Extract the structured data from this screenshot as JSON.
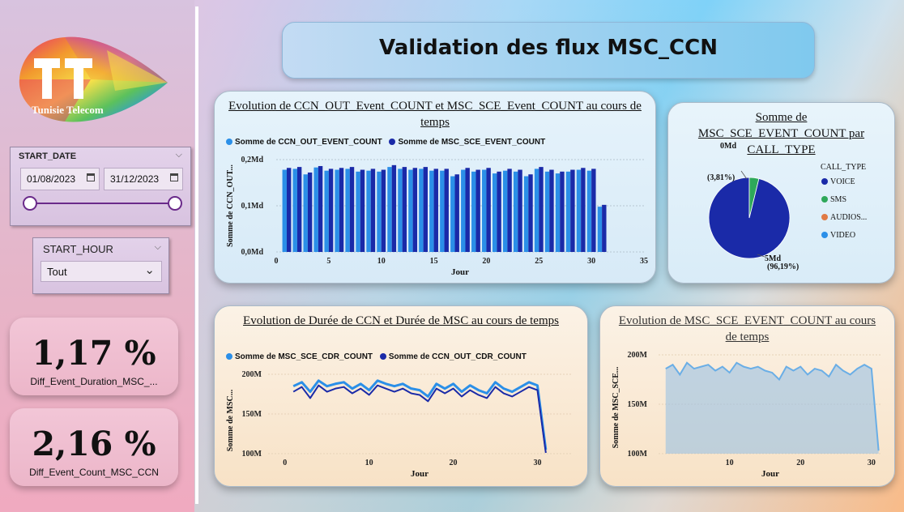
{
  "brand": {
    "logo_text": "Tunisie Telecom"
  },
  "dashboard_title": "Validation des flux MSC_CCN",
  "filters": {
    "start_date": {
      "label": "START_DATE",
      "from": "01/08/2023",
      "to": "31/12/2023"
    },
    "start_hour": {
      "label": "START_HOUR",
      "value": "Tout"
    }
  },
  "kpis": [
    {
      "value": "1,17 %",
      "label": "Diff_Event_Duration_MSC_..."
    },
    {
      "value": "2,16 %",
      "label": "Diff_Event_Count_MSC_CCN"
    }
  ],
  "colors": {
    "light_series": "#2b8fe8",
    "dark_series": "#1a2aa8",
    "area": "#8fbde6",
    "voice": "#1a2aa8",
    "sms": "#2ea85a",
    "audios": "#e07a45",
    "video": "#2b8fe8"
  },
  "chart_data": [
    {
      "type": "bar",
      "title": "Evolution de CCN_OUT_Event_COUNT et MSC_SCE_Event_COUNT au cours de temps",
      "xlabel": "Jour",
      "ylabel": "Somme de CCN_OUT...",
      "x_ticks": [
        "0",
        "5",
        "10",
        "15",
        "20",
        "25",
        "30",
        "35"
      ],
      "y_ticks": [
        "0,0Md",
        "0,1Md",
        "0,2Md"
      ],
      "xlim": [
        0,
        35
      ],
      "ylim": [
        0,
        0.2
      ],
      "x": [
        1,
        2,
        3,
        4,
        5,
        6,
        7,
        8,
        9,
        10,
        11,
        12,
        13,
        14,
        15,
        16,
        17,
        18,
        19,
        20,
        21,
        22,
        23,
        24,
        25,
        26,
        27,
        28,
        29,
        30,
        31
      ],
      "series": [
        {
          "name": "Somme de CCN_OUT_EVENT_COUNT",
          "values": [
            0.178,
            0.18,
            0.168,
            0.183,
            0.176,
            0.178,
            0.18,
            0.174,
            0.176,
            0.174,
            0.184,
            0.18,
            0.178,
            0.18,
            0.176,
            0.176,
            0.164,
            0.178,
            0.174,
            0.178,
            0.17,
            0.176,
            0.174,
            0.164,
            0.18,
            0.174,
            0.17,
            0.174,
            0.178,
            0.176,
            0.098
          ]
        },
        {
          "name": "Somme de MSC_SCE_EVENT_COUNT",
          "values": [
            0.182,
            0.184,
            0.172,
            0.186,
            0.18,
            0.182,
            0.184,
            0.178,
            0.18,
            0.178,
            0.188,
            0.184,
            0.182,
            0.184,
            0.18,
            0.18,
            0.168,
            0.182,
            0.178,
            0.182,
            0.174,
            0.18,
            0.178,
            0.168,
            0.184,
            0.178,
            0.174,
            0.178,
            0.182,
            0.18,
            0.102
          ]
        }
      ]
    },
    {
      "type": "pie",
      "title": "Somme de MSC_SCE_EVENT_COUNT par CALL_TYPE",
      "legend_title": "CALL_TYPE",
      "categories": [
        "VOICE",
        "SMS",
        "AUDIOS...",
        "VIDEO"
      ],
      "values": [
        96.19,
        3.81,
        0,
        0
      ],
      "data_labels": [
        {
          "value": "5Md",
          "pct": "(96,19%)"
        },
        {
          "value": "0Md",
          "pct": "(3,81%)"
        }
      ]
    },
    {
      "type": "line",
      "title": "Evolution de Durée de CCN et Durée de MSC au cours de temps",
      "xlabel": "Jour",
      "ylabel": "Somme de MSC...",
      "x_ticks": [
        "0",
        "10",
        "20",
        "30"
      ],
      "y_ticks": [
        "100M",
        "150M",
        "200M"
      ],
      "xlim": [
        -2,
        34
      ],
      "ylim": [
        100,
        200
      ],
      "x": [
        1,
        2,
        3,
        4,
        5,
        6,
        7,
        8,
        9,
        10,
        11,
        12,
        13,
        14,
        15,
        16,
        17,
        18,
        19,
        20,
        21,
        22,
        23,
        24,
        25,
        26,
        27,
        28,
        29,
        30,
        31
      ],
      "series": [
        {
          "name": "Somme de MSC_SCE_CDR_COUNT",
          "values": [
            185,
            190,
            178,
            192,
            185,
            188,
            190,
            182,
            188,
            180,
            192,
            188,
            185,
            188,
            182,
            180,
            172,
            188,
            182,
            188,
            178,
            186,
            180,
            176,
            190,
            182,
            178,
            184,
            190,
            186,
            105
          ]
        },
        {
          "name": "Somme de CCN_OUT_CDR_COUNT",
          "values": [
            178,
            184,
            170,
            186,
            178,
            182,
            184,
            176,
            182,
            174,
            186,
            182,
            178,
            182,
            176,
            174,
            166,
            182,
            176,
            182,
            172,
            180,
            174,
            170,
            184,
            176,
            172,
            178,
            184,
            180,
            101
          ]
        }
      ]
    },
    {
      "type": "area",
      "title": "Evolution de MSC_SCE_EVENT_COUNT au cours de temps",
      "xlabel": "Jour",
      "ylabel": "Somme de MSC_SCE...",
      "x_ticks": [
        "10",
        "20",
        "30"
      ],
      "y_ticks": [
        "100M",
        "150M",
        "200M"
      ],
      "xlim": [
        0,
        31.5
      ],
      "ylim": [
        100,
        200
      ],
      "x": [
        1,
        2,
        3,
        4,
        5,
        6,
        7,
        8,
        9,
        10,
        11,
        12,
        13,
        14,
        15,
        16,
        17,
        18,
        19,
        20,
        21,
        22,
        23,
        24,
        25,
        26,
        27,
        28,
        29,
        30,
        31
      ],
      "values": [
        186,
        190,
        180,
        192,
        186,
        188,
        190,
        184,
        188,
        182,
        192,
        188,
        186,
        188,
        184,
        182,
        175,
        188,
        184,
        188,
        180,
        186,
        184,
        178,
        190,
        184,
        180,
        186,
        190,
        186,
        103
      ]
    }
  ]
}
